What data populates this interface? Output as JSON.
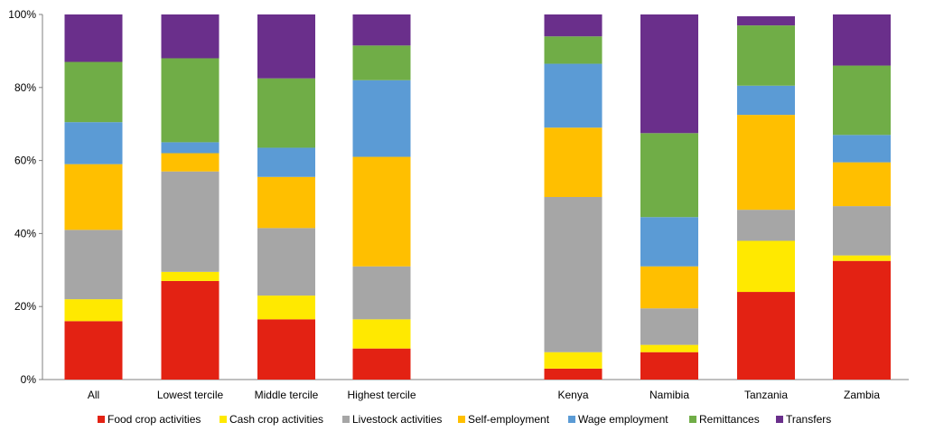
{
  "chart_data": {
    "type": "bar",
    "stacked": true,
    "title": "",
    "xlabel": "",
    "ylabel": "",
    "ylim": [
      0,
      100
    ],
    "yticks": [
      "0%",
      "20%",
      "40%",
      "60%",
      "80%",
      "100%"
    ],
    "grid": false,
    "legend_position": "bottom",
    "groups": [
      {
        "categories": [
          "All",
          "Lowest tercile",
          "Middle tercile",
          "Highest tercile"
        ]
      },
      {
        "categories": [
          "Kenya",
          "Namibia",
          "Tanzania",
          "Zambia"
        ]
      }
    ],
    "categories": [
      "All",
      "Lowest tercile",
      "Middle tercile",
      "Highest tercile",
      "Kenya",
      "Namibia",
      "Tanzania",
      "Zambia"
    ],
    "series": [
      {
        "name": "Food crop activities",
        "color": "#e32213",
        "values": [
          16,
          27,
          16.5,
          8.5,
          3,
          7.5,
          24,
          32.5
        ]
      },
      {
        "name": "Cash crop activities",
        "color": "#ffe900",
        "values": [
          6,
          2.5,
          6.5,
          8,
          4.5,
          2,
          14,
          1.5
        ]
      },
      {
        "name": "Livestock activities",
        "color": "#a6a6a6",
        "values": [
          19,
          27.5,
          18.5,
          14.5,
          42.5,
          10,
          8.5,
          13.5
        ]
      },
      {
        "name": "Self-employment",
        "color": "#ffbf00",
        "values": [
          18,
          5,
          14,
          30,
          19,
          11.5,
          26,
          12
        ]
      },
      {
        "name": "Wage employment",
        "color": "#5b9bd5",
        "values": [
          11.5,
          3,
          8,
          21,
          17.5,
          13.5,
          8,
          7.5
        ]
      },
      {
        "name": "Remittances",
        "color": "#70ad47",
        "values": [
          16.5,
          23,
          19,
          9.5,
          7.5,
          23,
          16.5,
          19
        ]
      },
      {
        "name": "Transfers",
        "color": "#6a2f8b",
        "values": [
          13,
          12,
          17.5,
          8.5,
          6,
          32.5,
          2.5,
          14
        ]
      }
    ]
  }
}
